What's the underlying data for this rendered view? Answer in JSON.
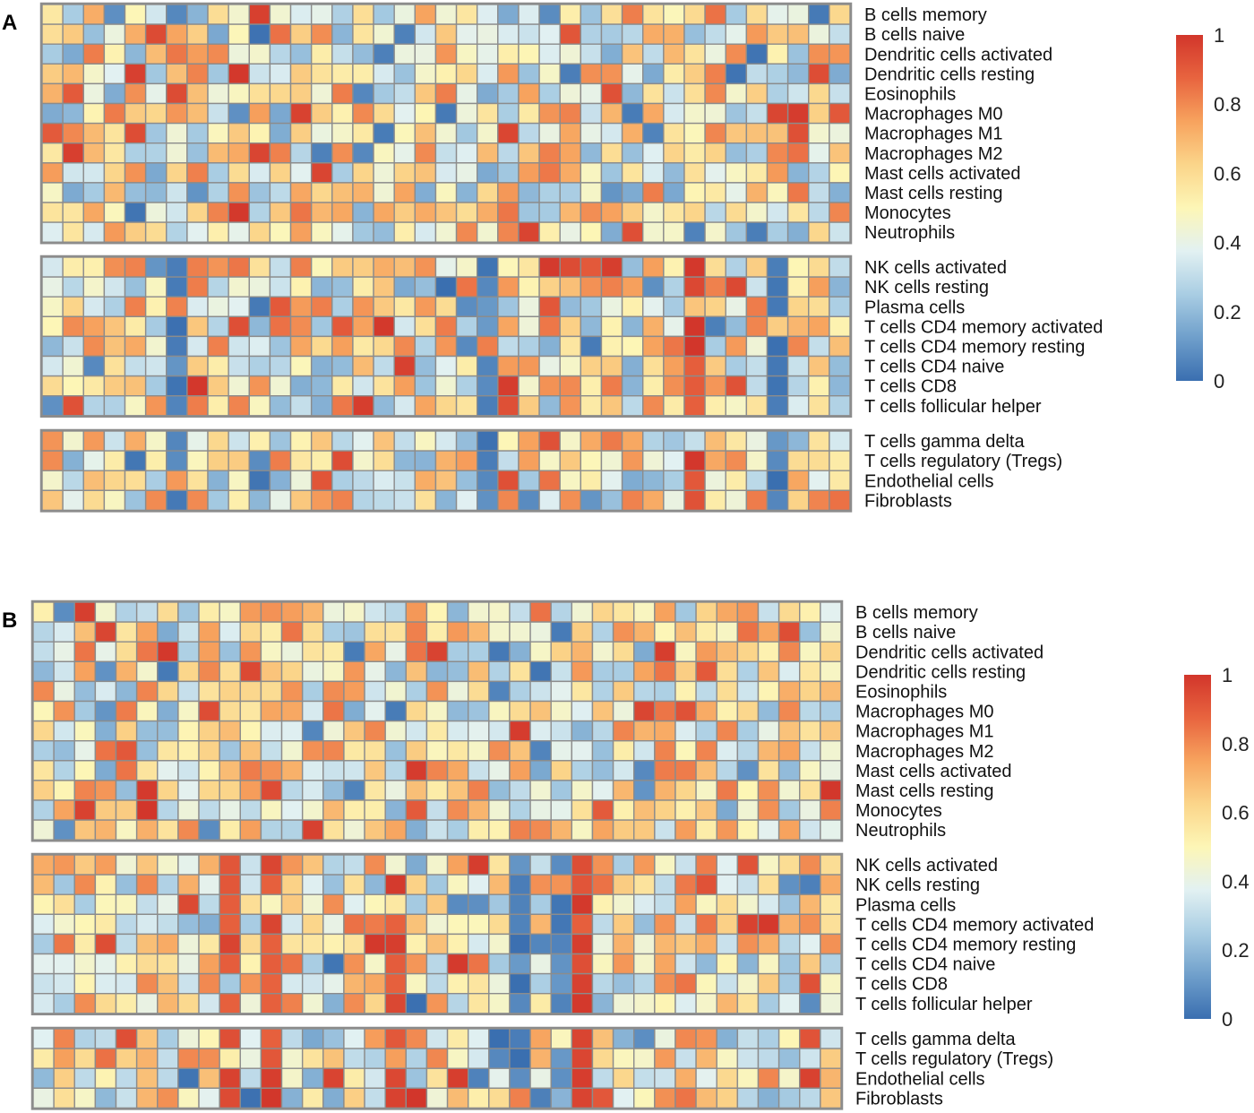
{
  "chart_data": [
    {
      "type": "heatmap",
      "panel": "A",
      "n_columns": 39,
      "row_groups": [
        [
          "B cells memory",
          "B cells naive",
          "Dendritic cells activated",
          "Dendritic cells resting",
          "Eosinophils",
          "Macrophages M0",
          "Macrophages M1",
          "Macrophages M2",
          "Mast cells activated",
          "Mast cells resting",
          "Monocytes",
          "Neutrophils"
        ],
        [
          "NK cells activated",
          "NK cells resting",
          "Plasma cells",
          "T cells CD4 memory activated",
          "T cells CD4 memory resting",
          "T cells CD4 naive",
          "T cells CD8",
          "T cells follicular helper"
        ],
        [
          "T cells gamma delta",
          "T cells regulatory (Tregs)",
          "Endothelial cells",
          "Fibroblasts"
        ]
      ],
      "colorbar": {
        "range": [
          0,
          1
        ],
        "ticks": [
          "0",
          "0.2",
          "0.4",
          "0.6",
          "0.8",
          "1"
        ]
      },
      "seed": 11
    },
    {
      "type": "heatmap",
      "panel": "B",
      "n_columns": 39,
      "row_groups": [
        [
          "B cells memory",
          "B cells naive",
          "Dendritic cells activated",
          "Dendritic cells resting",
          "Eosinophils",
          "Macrophages M0",
          "Macrophages M1",
          "Macrophages M2",
          "Mast cells activated",
          "Mast cells resting",
          "Monocytes",
          "Neutrophils"
        ],
        [
          "NK cells activated",
          "NK cells resting",
          "Plasma cells",
          "T cells CD4 memory activated",
          "T cells CD4 memory resting",
          "T cells CD4 naive",
          "T cells CD8",
          "T cells follicular helper"
        ],
        [
          "T cells gamma delta",
          "T cells regulatory (Tregs)",
          "Endothelial cells",
          "Fibroblasts"
        ]
      ],
      "colorbar": {
        "range": [
          0,
          1
        ],
        "ticks": [
          "0",
          "0.2",
          "0.4",
          "0.6",
          "0.8",
          "1"
        ]
      },
      "seed": 29
    }
  ],
  "colors": {
    "scale": [
      "#3a6fb0",
      "#6f9fcb",
      "#a9cde3",
      "#e2f1f2",
      "#fdf6b6",
      "#fbd58a",
      "#f7a35e",
      "#e8643f",
      "#d2362b"
    ],
    "cell_border": "#8c8c8c",
    "group_border": "#8c8c8c"
  }
}
